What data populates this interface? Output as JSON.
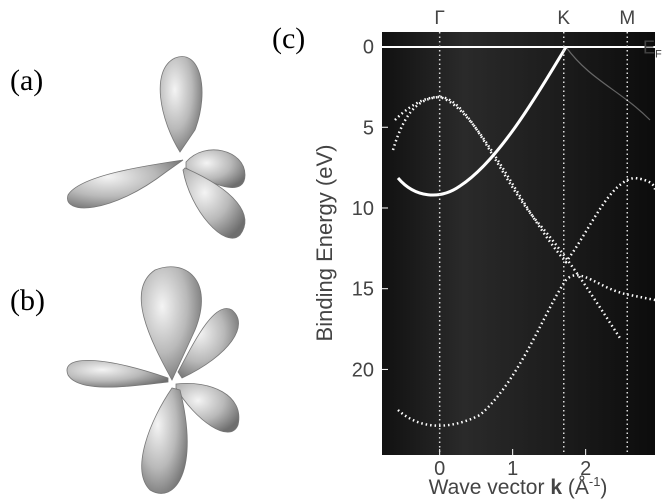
{
  "panels": {
    "a": "(a)",
    "b": "(b)",
    "c": "(c)"
  },
  "plot": {
    "ylabel": "Binding Energy (eV)",
    "xlabel": {
      "text": "Wave vector ",
      "bold": "k",
      "unit_open": " (Å",
      "unit_sup": "-1",
      "unit_close": ")"
    },
    "ylim": [
      -0.9,
      25.3
    ],
    "xlim": [
      -0.79,
      2.95
    ],
    "yticks": [
      0,
      5,
      10,
      15,
      20
    ],
    "xticks": [
      0,
      1,
      2
    ],
    "points": [
      {
        "label": "Γ",
        "value": 0
      },
      {
        "label": "K",
        "value": 1.7
      },
      {
        "label": "M",
        "value": 2.57
      }
    ],
    "fermi": {
      "label": "E",
      "sub": "F",
      "value": 0
    }
  }
}
